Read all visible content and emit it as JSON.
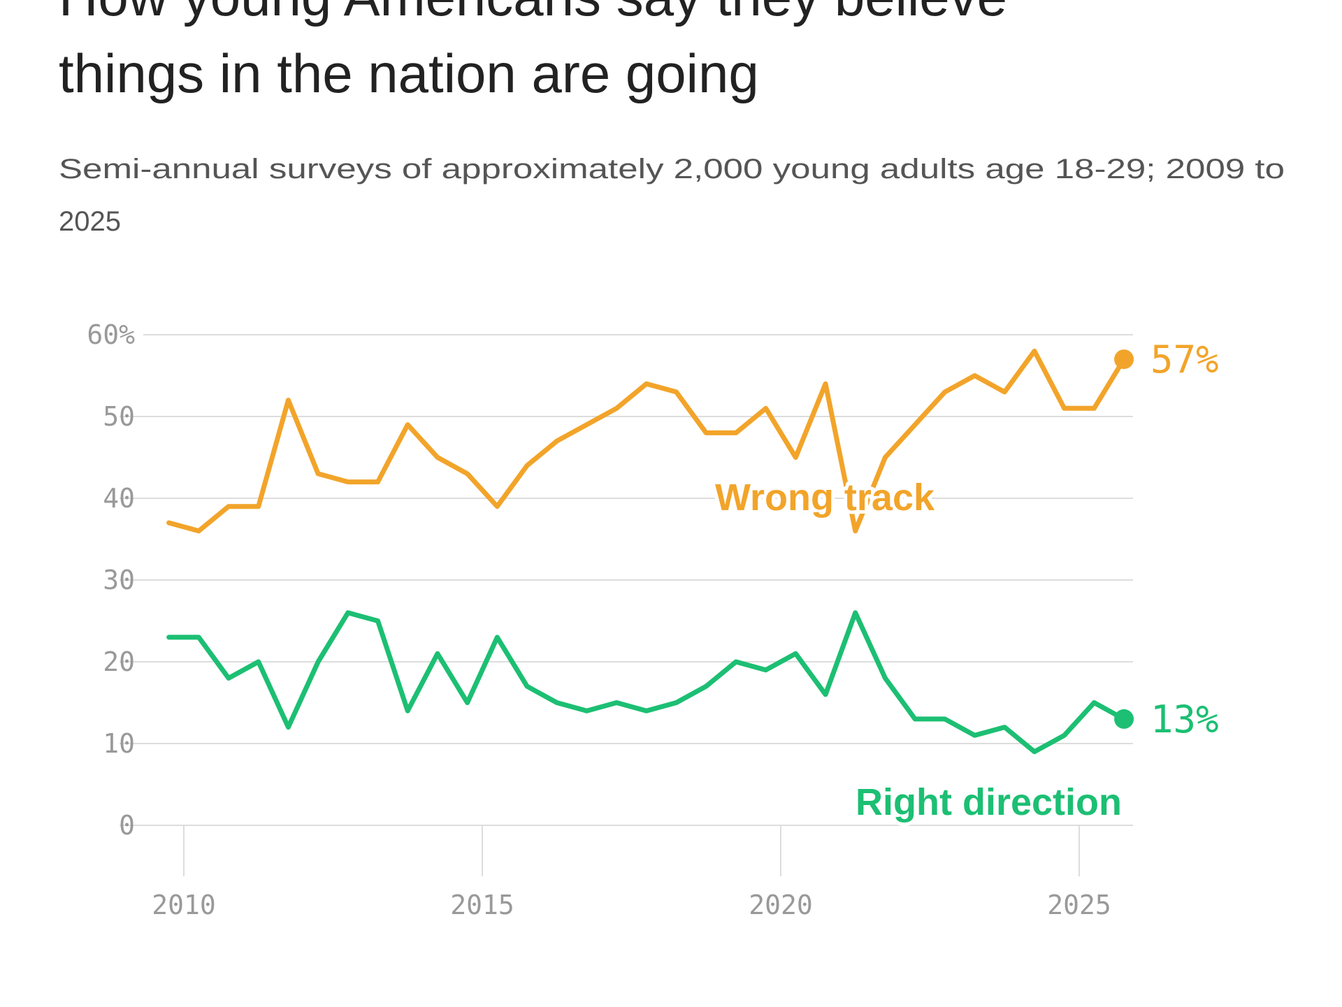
{
  "chart_data": {
    "type": "line",
    "title_lines": [
      "How young Americans say they believe",
      "things in the nation are going"
    ],
    "subtitle_lines": [
      "Semi-annual surveys of approximately 2,000 young adults age 18-29; 2009 to",
      "2025"
    ],
    "xlabel": "",
    "ylabel": "",
    "ylim": [
      0,
      60
    ],
    "xlim": [
      2009.5,
      2026
    ],
    "y_ticks": [
      {
        "value": 0,
        "label": "0"
      },
      {
        "value": 10,
        "label": "10"
      },
      {
        "value": 20,
        "label": "20"
      },
      {
        "value": 30,
        "label": "30"
      },
      {
        "value": 40,
        "label": "40"
      },
      {
        "value": 50,
        "label": "50"
      },
      {
        "value": 60,
        "label": "60%"
      }
    ],
    "x_ticks": [
      {
        "value": 2010,
        "label": "2010"
      },
      {
        "value": 2015,
        "label": "2015"
      },
      {
        "value": 2020,
        "label": "2020"
      },
      {
        "value": 2025,
        "label": "2025"
      }
    ],
    "grid": true,
    "x": [
      2009.75,
      2010.25,
      2010.75,
      2011.25,
      2011.75,
      2012.25,
      2012.75,
      2013.25,
      2013.75,
      2014.25,
      2014.75,
      2015.25,
      2015.75,
      2016.25,
      2016.75,
      2017.25,
      2017.75,
      2018.25,
      2018.75,
      2019.25,
      2019.75,
      2020.25,
      2020.75,
      2021.25,
      2021.75,
      2022.25,
      2022.75,
      2023.25,
      2023.75,
      2024.25,
      2024.75,
      2025.25,
      2025.75
    ],
    "series": [
      {
        "name": "Wrong track",
        "color": "#f2a42a",
        "end_label": "57%",
        "values": [
          37,
          36,
          39,
          39,
          52,
          43,
          42,
          42,
          49,
          45,
          43,
          39,
          44,
          47,
          49,
          51,
          54,
          53,
          48,
          48,
          51,
          45,
          54,
          36,
          45,
          49,
          53,
          55,
          53,
          58,
          51,
          51,
          57
        ]
      },
      {
        "name": "Right direction",
        "color": "#1cbf73",
        "end_label": "13%",
        "values": [
          23,
          23,
          18,
          20,
          12,
          20,
          26,
          25,
          14,
          21,
          15,
          23,
          17,
          15,
          14,
          15,
          14,
          15,
          17,
          20,
          19,
          21,
          16,
          26,
          18,
          13,
          13,
          11,
          12,
          9,
          11,
          15,
          13
        ]
      }
    ],
    "legend": "direct labels"
  }
}
